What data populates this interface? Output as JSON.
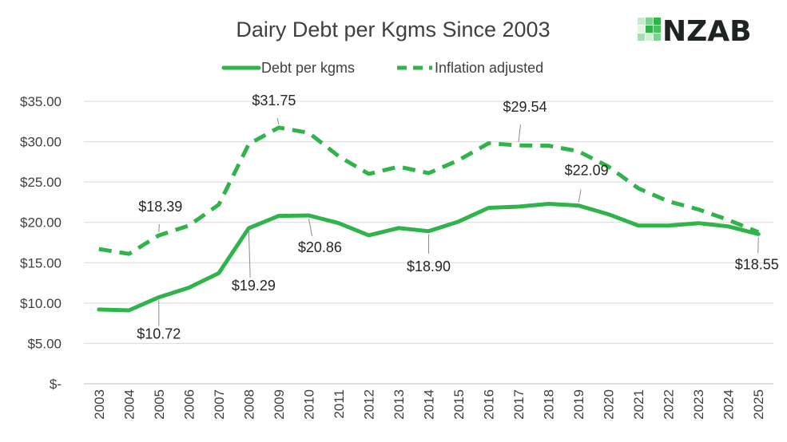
{
  "brand": {
    "logo_text": "NZAB",
    "accent": "#2fb34a",
    "dark": "#1e2324"
  },
  "chart_data": {
    "type": "line",
    "title": "Dairy Debt per Kgms Since 2003",
    "xlabel": "",
    "ylabel": "",
    "ylim": [
      0,
      35
    ],
    "yticks": [
      0,
      5,
      10,
      15,
      20,
      25,
      30,
      35
    ],
    "ytick_labels": [
      "$-",
      "$5.00",
      "$10.00",
      "$15.00",
      "$20.00",
      "$25.00",
      "$30.00",
      "$35.00"
    ],
    "grid": true,
    "legend_position": "top",
    "x": [
      "2003",
      "2004",
      "2005",
      "2006",
      "2007",
      "2008",
      "2009",
      "2010",
      "2011",
      "2012",
      "2013",
      "2014",
      "2015",
      "2016",
      "2017",
      "2018",
      "2019",
      "2020",
      "2021",
      "2022",
      "2023",
      "2024",
      "2025"
    ],
    "series": [
      {
        "name": "Debt per kgms",
        "style": "solid",
        "color": "#2fb34a",
        "values": [
          9.2,
          9.1,
          10.72,
          11.9,
          13.7,
          19.29,
          20.8,
          20.86,
          19.9,
          18.4,
          19.3,
          18.9,
          20.1,
          21.8,
          21.95,
          22.3,
          22.09,
          21.0,
          19.6,
          19.6,
          19.9,
          19.5,
          18.55
        ]
      },
      {
        "name": "Inflation adjusted",
        "style": "dashed",
        "color": "#2fb34a",
        "values": [
          16.7,
          16.1,
          18.39,
          19.6,
          22.2,
          29.7,
          31.75,
          31.1,
          28.2,
          26.0,
          26.9,
          26.1,
          27.7,
          29.8,
          29.54,
          29.5,
          28.8,
          26.9,
          24.2,
          22.6,
          21.6,
          20.3,
          18.8
        ]
      }
    ],
    "data_labels": [
      {
        "series": 0,
        "index": 2,
        "text": "$10.72"
      },
      {
        "series": 0,
        "index": 5,
        "text": "$19.29"
      },
      {
        "series": 0,
        "index": 7,
        "text": "$20.86"
      },
      {
        "series": 0,
        "index": 11,
        "text": "$18.90"
      },
      {
        "series": 0,
        "index": 16,
        "text": "$22.09"
      },
      {
        "series": 0,
        "index": 22,
        "text": "$18.55"
      },
      {
        "series": 1,
        "index": 2,
        "text": "$18.39"
      },
      {
        "series": 1,
        "index": 6,
        "text": "$31.75"
      },
      {
        "series": 1,
        "index": 14,
        "text": "$29.54"
      }
    ]
  }
}
